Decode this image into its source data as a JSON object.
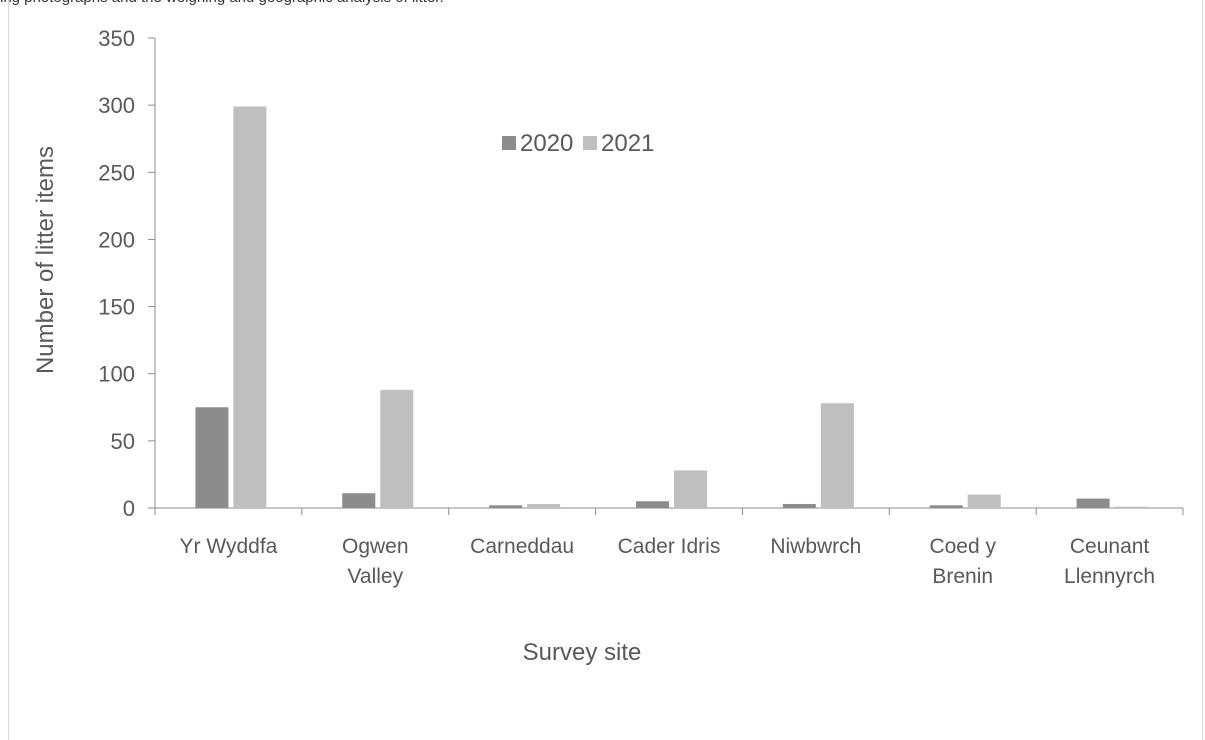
{
  "page": {
    "caption_fragment": "ing photographs and the weighing and geographic analysis of litter."
  },
  "chart_data": {
    "type": "bar",
    "title": "",
    "xlabel": "Survey site",
    "ylabel": "Number of litter items",
    "ylim": [
      0,
      350
    ],
    "yticks": [
      0,
      50,
      100,
      150,
      200,
      250,
      300,
      350
    ],
    "categories": [
      [
        "Yr Wyddfa"
      ],
      [
        "Ogwen",
        "Valley"
      ],
      [
        "Carneddau"
      ],
      [
        "Cader Idris"
      ],
      [
        "Niwbwrch"
      ],
      [
        "Coed y",
        "Brenin"
      ],
      [
        "Ceunant",
        "Llennyrch"
      ]
    ],
    "series": [
      {
        "name": "2020",
        "color": "#8c8c8c",
        "values": [
          75,
          11,
          2,
          5,
          3,
          2,
          7
        ]
      },
      {
        "name": "2021",
        "color": "#bfbfbf",
        "values": [
          299,
          88,
          3,
          28,
          78,
          10,
          1
        ]
      }
    ],
    "legend_position": "top-center",
    "grid": false,
    "colors": {
      "axis": "#8c8c8c",
      "text": "#595959"
    }
  }
}
